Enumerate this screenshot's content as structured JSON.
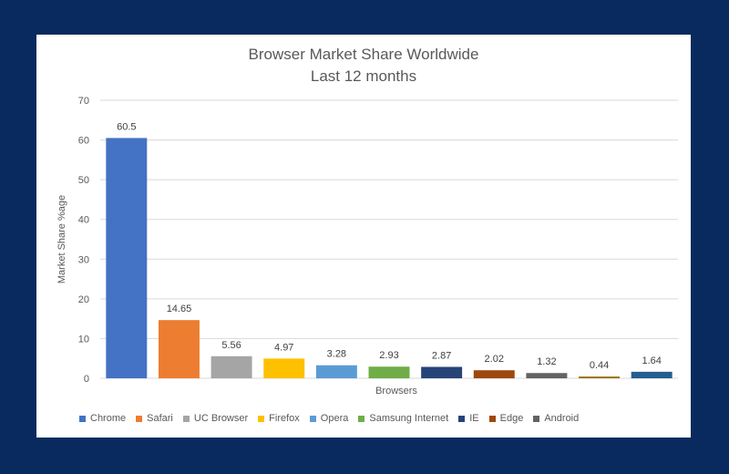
{
  "chart_data": {
    "type": "bar",
    "title": "Browser Market Share Worldwide",
    "subtitle": "Last 12 months",
    "xlabel": "Browsers",
    "ylabel": "Market Share %age",
    "ylim": [
      0,
      70
    ],
    "yticks": [
      0,
      10,
      20,
      30,
      40,
      50,
      60,
      70
    ],
    "grid": true,
    "legend_position": "bottom",
    "categories": [
      "Chrome",
      "Safari",
      "UC Browser",
      "Firefox",
      "Opera",
      "Samsung Internet",
      "IE",
      "Edge",
      "Android",
      "",
      ""
    ],
    "values": [
      60.5,
      14.65,
      5.56,
      4.97,
      3.28,
      2.93,
      2.87,
      2.02,
      1.32,
      0.44,
      1.64
    ],
    "value_labels": [
      "60.5",
      "14.65",
      "5.56",
      "4.97",
      "3.28",
      "2.93",
      "2.87",
      "2.02",
      "1.32",
      "0.44",
      "1.64"
    ],
    "colors": [
      "#4472c4",
      "#ed7d31",
      "#a5a5a5",
      "#ffc000",
      "#5b9bd5",
      "#70ad47",
      "#264478",
      "#9e480e",
      "#636363",
      "#997300",
      "#255e91"
    ],
    "legend": [
      "Chrome",
      "Safari",
      "UC Browser",
      "Firefox",
      "Opera",
      "Samsung Internet",
      "IE",
      "Edge",
      "Android"
    ]
  }
}
